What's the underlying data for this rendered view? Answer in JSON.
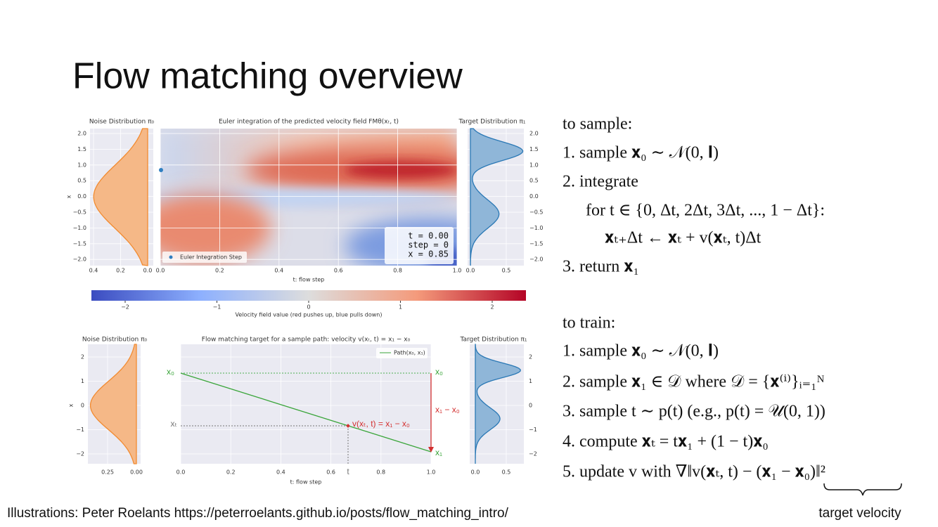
{
  "header": {
    "title": "Flow matching overview"
  },
  "figure_top": {
    "noise_title": "Noise Distribution π₀",
    "heatmap_title": "Euler integration of the predicted velocity field FMθ(xₜ, t)",
    "target_title": "Target Distribution π₁",
    "y_label": "x",
    "y_ticks": [
      "2.0",
      "1.5",
      "1.0",
      "0.5",
      "0.0",
      "−0.5",
      "−1.0",
      "−1.5",
      "−2.0"
    ],
    "noise_x_ticks": [
      "0.4",
      "0.2",
      "0.0"
    ],
    "heatmap_x_ticks": [
      "0.0",
      "0.2",
      "0.4",
      "0.6",
      "0.8",
      "1.0"
    ],
    "target_x_ticks": [
      "0.0",
      "0.5"
    ],
    "x_label": "t: flow step",
    "legend": "Euler Integration Step",
    "status": [
      "t = 0.00",
      "step = 0",
      "x = 0.85"
    ],
    "colorbar_ticks": [
      "−2",
      "−1",
      "0",
      "1",
      "2"
    ],
    "colorbar_label": "Velocity field value (red pushes up, blue pulls down)"
  },
  "figure_bottom": {
    "noise_title": "Noise Distribution π₀",
    "main_title": "Flow matching target for a sample path: velocity v(xₜ, t) = x₁ − x₀",
    "target_title": "Target Distribution π₁",
    "y_label": "x",
    "y_ticks": [
      "2",
      "1",
      "0",
      "−1",
      "−2"
    ],
    "noise_x_ticks": [
      "0.25",
      "0.00"
    ],
    "main_x_ticks": [
      "0.0",
      "0.2",
      "0.4",
      "0.6",
      "0.8",
      "1.0"
    ],
    "target_x_ticks": [
      "0.0",
      "0.5"
    ],
    "x_label": "t: flow step",
    "legend": "Path(x₀, x₁)",
    "annotations": {
      "x0_left": "x₀",
      "xt_left": "xₜ",
      "t_bottom": "t",
      "x0_right": "x₀",
      "x1_right": "x₁",
      "difference": "x₁ − x₀",
      "velocity": "v(xₜ, t) = x₁ − x₀"
    }
  },
  "algorithm": {
    "sample_heading": "to sample:",
    "sample_steps": [
      "1. sample 𝐱₀ ∼ 𝒩(0, 𝐈)",
      "2. integrate",
      "for t ∈ {0, Δt, 2Δt, 3Δt, ..., 1 − Δt}:",
      "𝐱ₜ₊Δt ← 𝐱ₜ + v(𝐱ₜ, t)Δt",
      "3. return 𝐱₁"
    ],
    "train_heading": "to train:",
    "train_steps": [
      "1. sample 𝐱₀ ∼ 𝒩(0, 𝐈)",
      "2. sample 𝐱₁ ∈ 𝒟 where 𝒟 = {𝐱⁽ⁱ⁾}ᵢ₌₁ᴺ",
      "3. sample t ∼ p(t) (e.g., p(t) = 𝒰(0, 1))",
      "4. compute 𝐱ₜ = t𝐱₁ + (1 − t)𝐱₀",
      "5. update v with ∇‖v(𝐱ₜ, t) − (𝐱₁ − 𝐱₀)‖²"
    ],
    "brace_label": "target velocity"
  },
  "footer": "Illustrations: Peter Roelants https://peterroelants.github.io/posts/flow_matching_intro/"
}
